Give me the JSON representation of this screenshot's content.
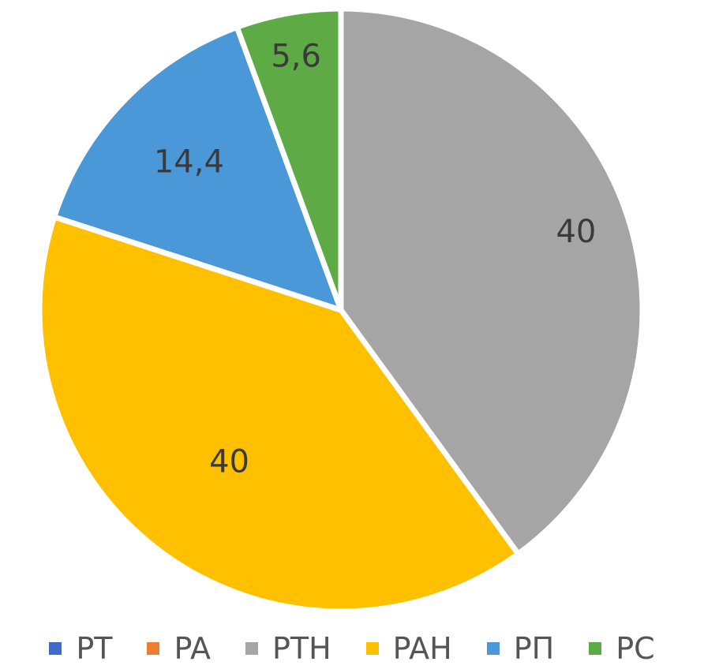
{
  "chart_data": {
    "type": "pie",
    "title": "",
    "categories": [
      "PT",
      "PA",
      "PTH",
      "PAH",
      "PП",
      "PC"
    ],
    "values": [
      0,
      0,
      40,
      40,
      14.4,
      5.6
    ],
    "data_labels": [
      "",
      "",
      "40",
      "40",
      "14,4",
      "5,6"
    ],
    "colors": [
      "#3e6cc4",
      "#ed7d31",
      "#a5a5a5",
      "#ffc000",
      "#4a98d8",
      "#5eab46"
    ],
    "legend_position": "bottom",
    "start_angle": "12 o'clock",
    "direction": "clockwise"
  },
  "legend": {
    "items": [
      {
        "label": "PT",
        "color": "#3e6cc4"
      },
      {
        "label": "PA",
        "color": "#ed7d31"
      },
      {
        "label": "PTH",
        "color": "#a5a5a5"
      },
      {
        "label": "PAH",
        "color": "#ffc000"
      },
      {
        "label": "PП",
        "color": "#4a98d8"
      },
      {
        "label": "PC",
        "color": "#5eab46"
      }
    ]
  }
}
